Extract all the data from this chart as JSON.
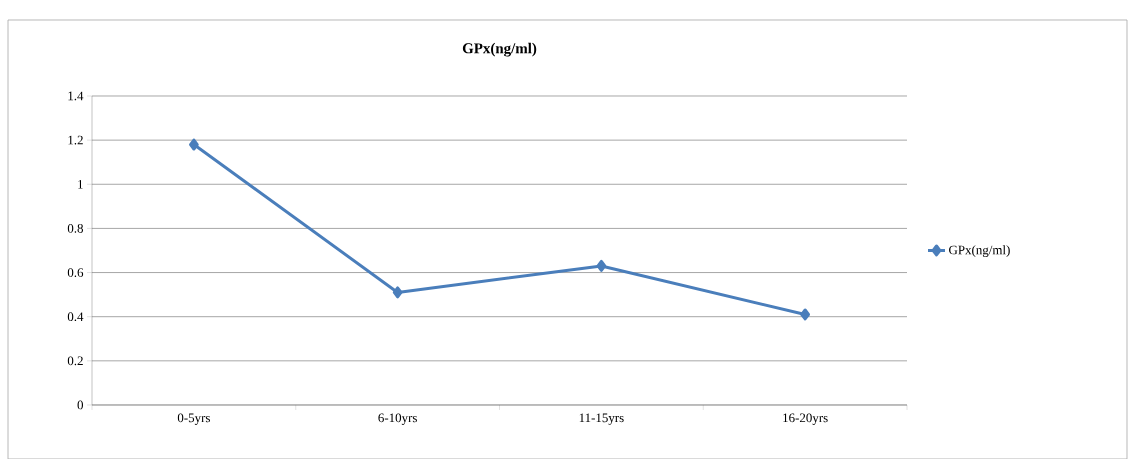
{
  "chart_data": {
    "type": "line",
    "title": "GPx(ng/ml)",
    "categories": [
      "0-5yrs",
      "6-10yrs",
      "11-15yrs",
      "16-20yrs"
    ],
    "series": [
      {
        "name": "GPx(ng/ml)",
        "color": "#4a7ebb",
        "values": [
          1.18,
          0.51,
          0.63,
          0.41
        ]
      }
    ],
    "ylim": [
      0,
      1.4
    ],
    "yticks": [
      0,
      0.2,
      0.4,
      0.6,
      0.8,
      1,
      1.2,
      1.4
    ],
    "grid": "y",
    "legend": "right",
    "marker": "diamond",
    "line_style": "solid"
  }
}
